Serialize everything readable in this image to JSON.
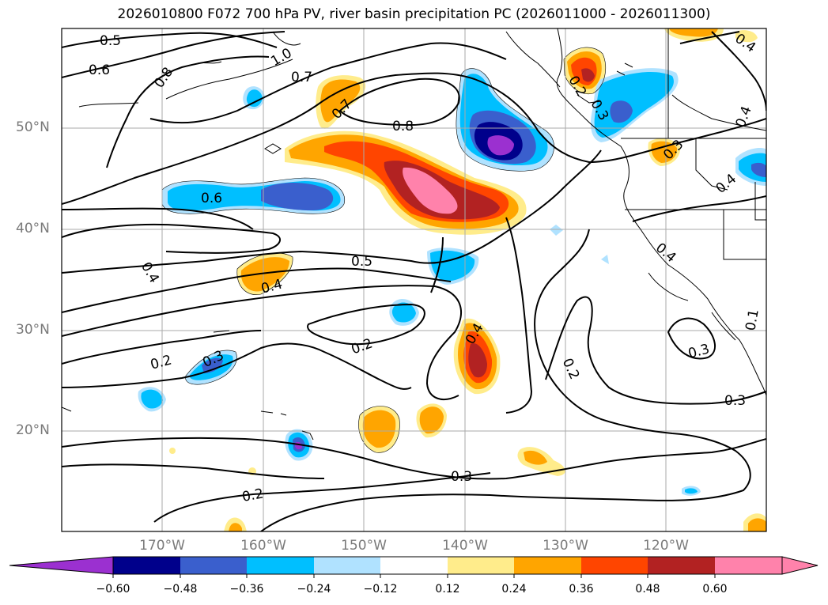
{
  "title": "2026010800 F072 700 hPa PV, river basin precipitation PC (2026011000 - 2026011300)",
  "map": {
    "lat_labels": [
      "50°N",
      "40°N",
      "30°N",
      "20°N"
    ],
    "lon_labels": [
      "170°W",
      "160°W",
      "150°W",
      "140°W",
      "130°W",
      "120°W"
    ],
    "contour_labels": [
      "0.5",
      "0.6",
      "0.8",
      "1.0",
      "0.7",
      "0.7",
      "0.8",
      "0.6",
      "0.4",
      "0.5",
      "0.4",
      "0.3",
      "0.2",
      "0.2",
      "0.3",
      "0.4",
      "0.2",
      "0.2",
      "0.3",
      "0.3",
      "0.4",
      "0.4",
      "0.3",
      "0.4",
      "0.3",
      "0.4",
      "0.2",
      "0.1"
    ],
    "colors": {
      "neg_060": "#9b30d0",
      "neg_048": "#00008b",
      "neg_036": "#3a5fcd",
      "neg_024": "#00bfff",
      "neg_012": "#b0e2ff",
      "pos_012": "#ffec8b",
      "pos_024": "#ffa500",
      "pos_036": "#ff4500",
      "pos_048": "#b22222",
      "pos_060": "#ff82ab"
    }
  },
  "colorbar": {
    "tick_labels": [
      "−0.60",
      "−0.48",
      "−0.36",
      "−0.24",
      "−0.12",
      "0.12",
      "0.24",
      "0.36",
      "0.48",
      "0.60"
    ],
    "levels": [
      -0.6,
      -0.48,
      -0.36,
      -0.24,
      -0.12,
      0.12,
      0.24,
      0.36,
      0.48,
      0.6
    ],
    "colors": [
      "#9b30d0",
      "#00008b",
      "#3a5fcd",
      "#00bfff",
      "#b0e2ff",
      "#ffffff",
      "#ffec8b",
      "#ffa500",
      "#ff4500",
      "#b22222",
      "#ff82ab"
    ]
  }
}
